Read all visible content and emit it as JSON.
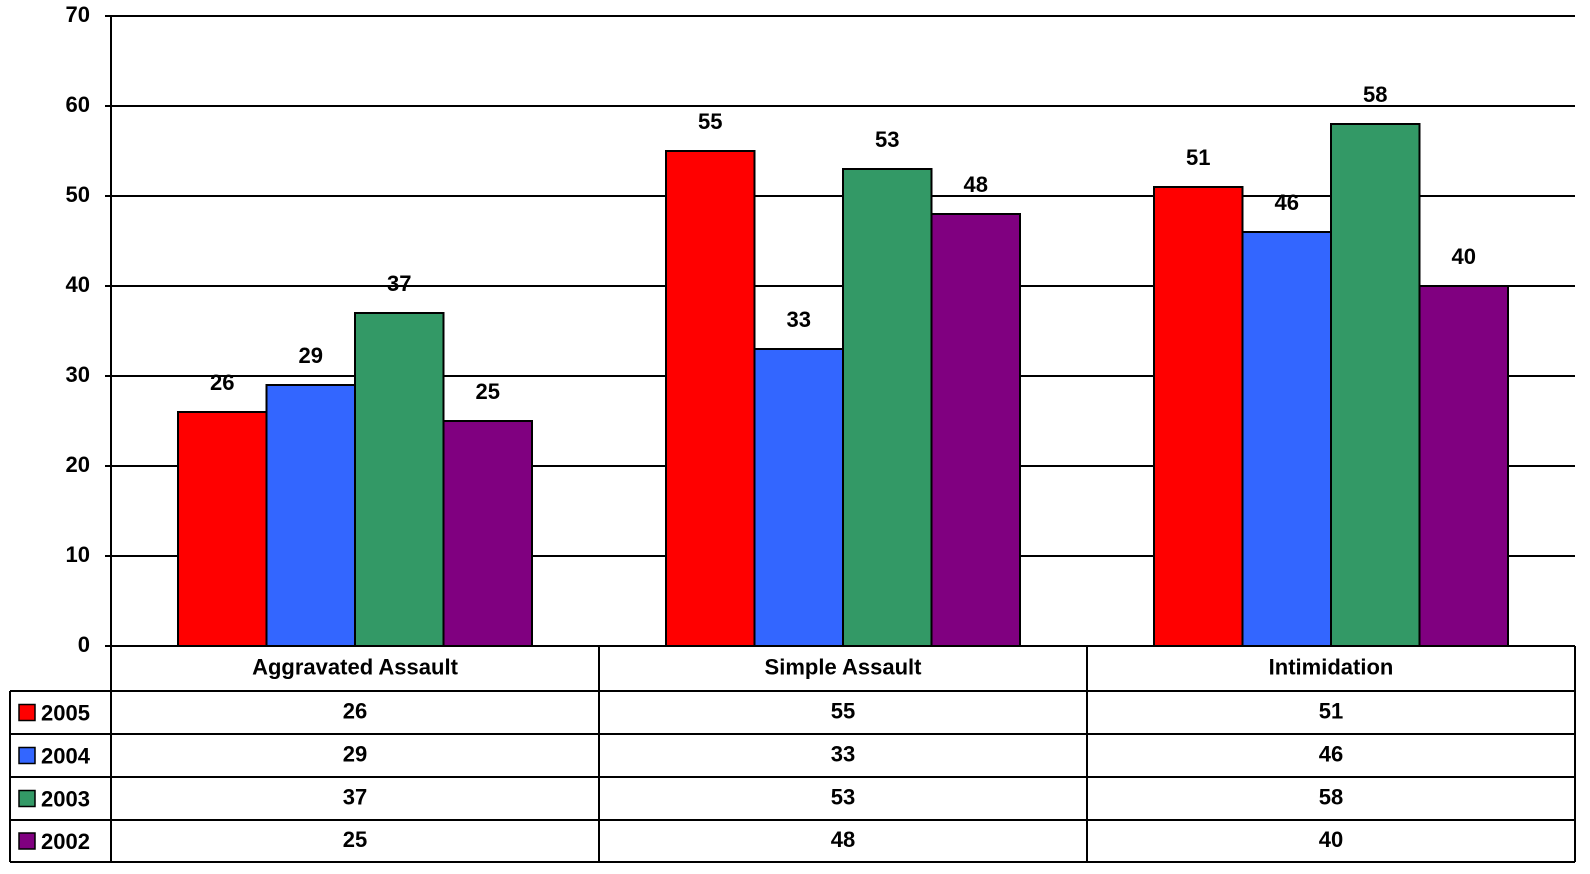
{
  "chart_data": {
    "type": "bar",
    "categories": [
      "Aggravated Assault",
      "Simple Assault",
      "Intimidation"
    ],
    "series": [
      {
        "name": "2005",
        "color": "#ff0000",
        "values": [
          26,
          55,
          51
        ]
      },
      {
        "name": "2004",
        "color": "#3366ff",
        "values": [
          29,
          33,
          46
        ]
      },
      {
        "name": "2003",
        "color": "#339966",
        "values": [
          37,
          53,
          58
        ]
      },
      {
        "name": "2002",
        "color": "#800080",
        "values": [
          25,
          48,
          40
        ]
      }
    ],
    "ylim": [
      0,
      70
    ],
    "yticks": [
      0,
      10,
      20,
      30,
      40,
      50,
      60,
      70
    ],
    "grid": true
  }
}
